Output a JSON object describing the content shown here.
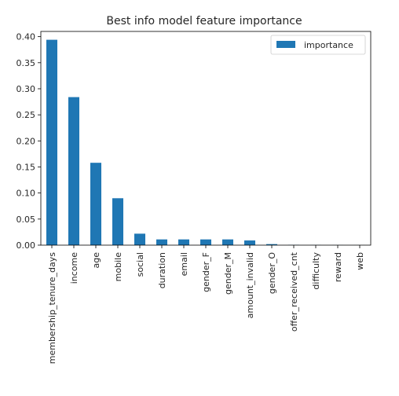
{
  "chart_data": {
    "type": "bar",
    "title": "Best info model feature importance",
    "xlabel": "",
    "ylabel": "",
    "categories": [
      "membership_tenure_days",
      "income",
      "age",
      "mobile",
      "social",
      "duration",
      "email",
      "gender_F",
      "gender_M",
      "amount_invalid",
      "gender_O",
      "offer_received_cnt",
      "difficulty",
      "reward",
      "web"
    ],
    "series": [
      {
        "name": "importance",
        "color": "#1f77b4",
        "values": [
          0.394,
          0.284,
          0.158,
          0.09,
          0.022,
          0.011,
          0.011,
          0.011,
          0.011,
          0.009,
          0.002,
          0.0005,
          0.0003,
          0.0002,
          0.0001
        ]
      }
    ],
    "ylim": [
      0,
      0.41
    ],
    "yticks": [
      0.0,
      0.05,
      0.1,
      0.15,
      0.2,
      0.25,
      0.3,
      0.35,
      0.4
    ],
    "ytick_labels": [
      "0.00",
      "0.05",
      "0.10",
      "0.15",
      "0.20",
      "0.25",
      "0.30",
      "0.35",
      "0.40"
    ],
    "grid": false,
    "legend_position": "top-right"
  }
}
